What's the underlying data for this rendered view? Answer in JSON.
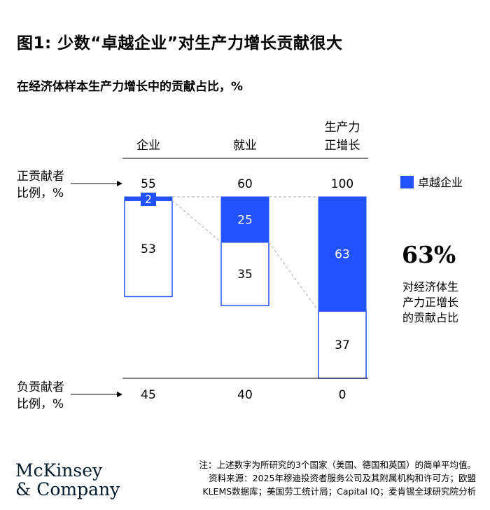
{
  "title": "图1: 少数“卓越企业”对生产力增长贡献很大",
  "subtitle": "在经济体样本生产力增长中的贡献占比，%",
  "row_labels": {
    "positive": [
      "正贡献者",
      "比例，%"
    ],
    "negative": [
      "负贡献者",
      "比例，%"
    ]
  },
  "callout": {
    "value": "63%",
    "lines": [
      "对经济体生",
      "产力正增长",
      "的贡献占比"
    ]
  },
  "colors": {
    "accent": "#2251ff",
    "bar_border": "#2251ff",
    "axis": "#000000",
    "connector": "#bbbbbb"
  },
  "chart_data": {
    "type": "bar",
    "stacked": true,
    "categories": [
      [
        "企业"
      ],
      [
        "就业"
      ],
      [
        "生产力",
        "正增长"
      ]
    ],
    "series": [
      {
        "name": "卓越企业",
        "values": [
          2,
          25,
          63
        ],
        "color": "#2251ff"
      },
      {
        "name": "",
        "values": [
          53,
          35,
          37
        ],
        "color": "#ffffff"
      }
    ],
    "positive_totals": [
      "55",
      "60",
      "100"
    ],
    "negative_totals": [
      "45",
      "40",
      "0"
    ],
    "ylim": [
      0,
      100
    ],
    "legend": {
      "position": "right"
    }
  },
  "notes": [
    "注：上述数字为所研究的3个国家（美国、德国和英国）的简单平均值。",
    "资料来源：2025年穆迪投资者服务公司及其附属机构和许可方；欧盟",
    "KLEMS数据库；美国劳工统计局；Capital IQ；麦肯锡全球研究院分析"
  ],
  "logo": [
    "McKinsey",
    "& Company"
  ]
}
